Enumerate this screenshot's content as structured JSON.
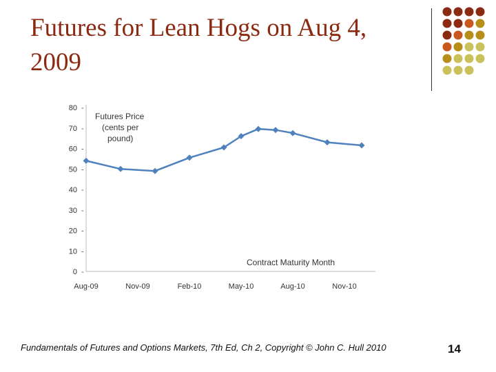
{
  "slide": {
    "title": "Futures for Lean Hogs on Aug 4, 2009",
    "footer": "Fundamentals of Futures and Options Markets, 7th Ed, Ch 2, Copyright © John C. Hull 2010",
    "page_number": "14"
  },
  "decoration": {
    "colors": [
      "#8b2a10",
      "#c8581c",
      "#b78e18",
      "#c9c25a"
    ]
  },
  "chart_data": {
    "type": "line",
    "ylabel": "Futures Price (cents per pound)",
    "xlabel": "Contract Maturity Month",
    "ylim": [
      0,
      80
    ],
    "yticks": [
      0,
      10,
      20,
      30,
      40,
      50,
      60,
      70,
      80
    ],
    "xticks": [
      "Aug-09",
      "Nov-09",
      "Feb-10",
      "May-10",
      "Aug-10",
      "Nov-10"
    ],
    "grid": false,
    "series": [
      {
        "color": "#4f81bd",
        "points": [
          {
            "x": "Aug-09",
            "y": 54
          },
          {
            "x": "Oct-09",
            "y": 50
          },
          {
            "x": "Dec-09",
            "y": 49
          },
          {
            "x": "Feb-10",
            "y": 55.5
          },
          {
            "x": "Apr-10",
            "y": 60.5
          },
          {
            "x": "May-10",
            "y": 66
          },
          {
            "x": "Jun-10",
            "y": 69.5
          },
          {
            "x": "Jul-10",
            "y": 69
          },
          {
            "x": "Aug-10",
            "y": 67.5
          },
          {
            "x": "Oct-10",
            "y": 63
          },
          {
            "x": "Dec-10",
            "y": 61.5
          }
        ]
      }
    ]
  }
}
